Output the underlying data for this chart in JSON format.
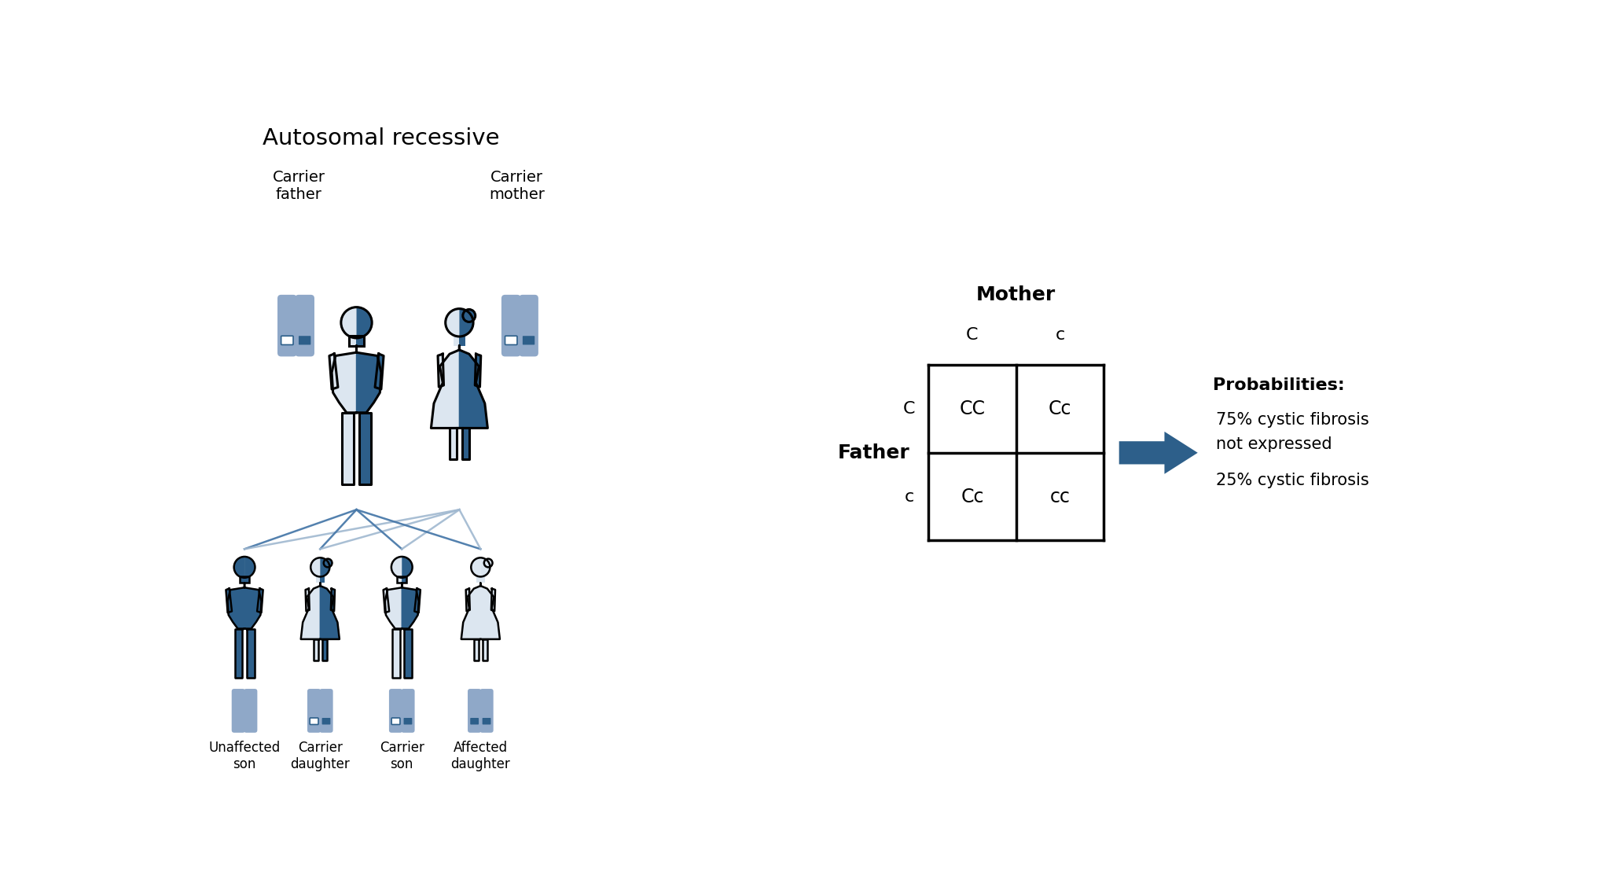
{
  "title": "Autosomal recessive",
  "bg_color": "#ffffff",
  "dark_blue": "#2d5f8a",
  "light_blue_fill": "#dce6f0",
  "carrier_blue": "#8fa8c8",
  "line_dark": "#4a7aaa",
  "line_light": "#a0b8d0",
  "punnett_title_mother": "Mother",
  "punnett_title_father": "Father",
  "punnett_col_labels": [
    "C",
    "c"
  ],
  "punnett_row_labels": [
    "C",
    "c"
  ],
  "punnett_cells": [
    [
      "CC",
      "Cc"
    ],
    [
      "Cc",
      "cc"
    ]
  ],
  "prob_title": "Probabilities:",
  "prob_line1": "75% cystic fibrosis",
  "prob_line2": "not expressed",
  "prob_line3": "25% cystic fibrosis",
  "father_label": "Carrier\nfather",
  "mother_label": "Carrier\nmother",
  "child_labels": [
    "Unaffected\nson",
    "Carrier\ndaughter",
    "Carrier\nson",
    "Affected\ndaughter"
  ]
}
